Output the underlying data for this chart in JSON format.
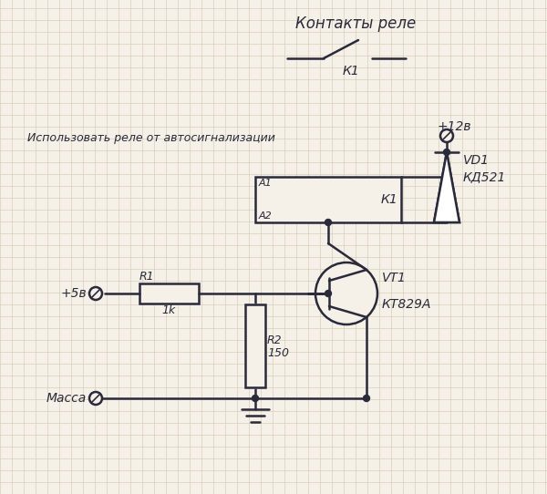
{
  "bg_color": "#f5f0e8",
  "grid_color": "#d0c8b0",
  "line_color": "#2a2a3a",
  "title_kontakty": "Контакты реле",
  "label_k1_top": "К1",
  "label_12v": "+12в",
  "label_use_relay": "Использовать реле от автосигнализации",
  "label_5v": "+5в",
  "label_massa": "Масса",
  "label_r1": "R1",
  "label_r1_val": "1k",
  "label_r2": "R2",
  "label_r2_val": "150",
  "label_vt1": "VT1",
  "label_vt1_type": "КТ829А",
  "label_vd1": "VD1",
  "label_vd1_type": "КД521",
  "label_a1": "А1",
  "label_a2": "А2",
  "label_k1_relay": "К1",
  "figsize": [
    6.0,
    5.42
  ],
  "dpi": 100
}
